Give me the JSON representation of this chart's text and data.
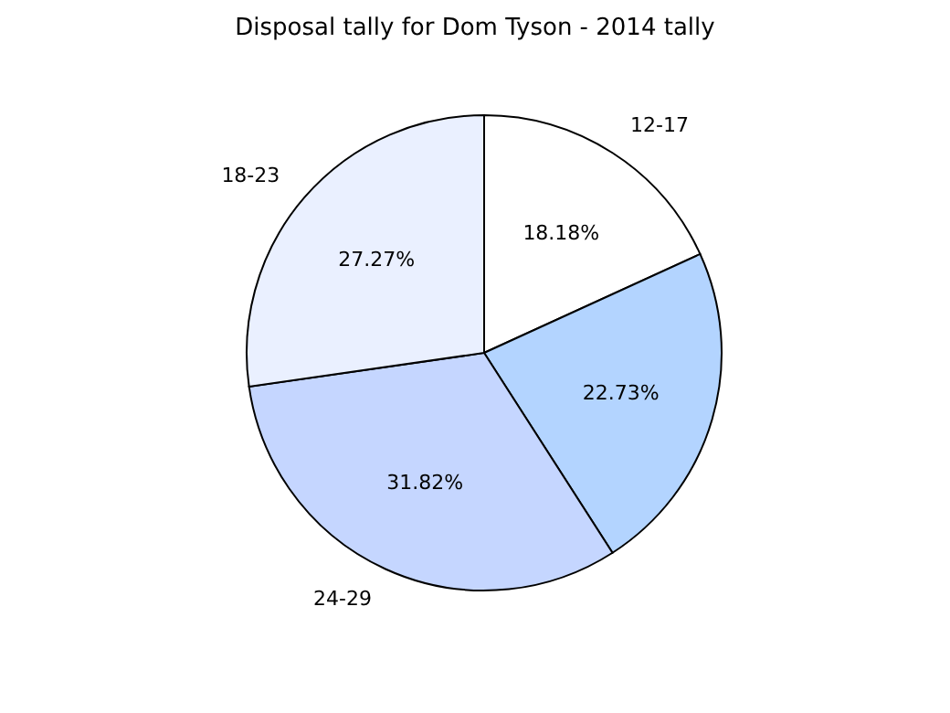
{
  "chart_data": {
    "type": "pie",
    "title": "Disposal tally for Dom Tyson - 2014 tally",
    "categories": [
      "12-17",
      null,
      "24-29",
      "18-23"
    ],
    "values": [
      18.18,
      22.73,
      31.82,
      27.27
    ],
    "value_labels": [
      "18.18%",
      "22.73%",
      "31.82%",
      "27.27%"
    ],
    "colors": [
      "#ffffff",
      "#b3d4ff",
      "#c5d6ff",
      "#eaf0ff"
    ],
    "legend": false
  }
}
